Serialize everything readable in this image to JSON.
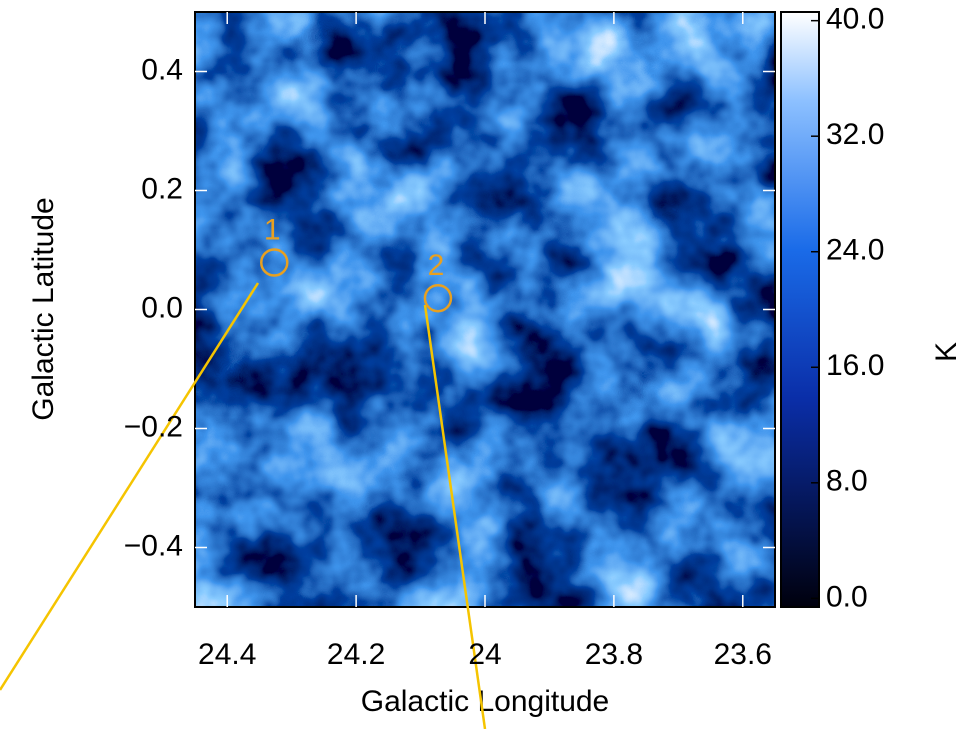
{
  "chart_data": {
    "type": "image",
    "xlabel": "Galactic Longitude",
    "ylabel": "Galactic Latitude",
    "xlim": [
      24.45,
      23.55
    ],
    "ylim": [
      -0.5,
      0.5
    ],
    "xticks": [
      24.4,
      24.2,
      24.0,
      23.8,
      23.6
    ],
    "yticks": [
      {
        "value": -0.4,
        "label": "−0.4"
      },
      {
        "value": -0.2,
        "label": "−0.2"
      },
      {
        "value": 0,
        "label": "0.0"
      },
      0.2,
      0.4
    ],
    "colorbar": {
      "label": "K",
      "lim": [
        -0.6,
        40.6
      ],
      "ticks": [
        {
          "value": 0,
          "label": "0.0"
        },
        {
          "value": 8,
          "label": "8.0"
        },
        {
          "value": 16,
          "label": "16.0"
        },
        {
          "value": 24,
          "label": "24.0"
        },
        {
          "value": 32,
          "label": "32.0"
        },
        {
          "value": 40,
          "label": "40.0"
        }
      ]
    },
    "annotations": [
      {
        "label": "1",
        "x": 24.327,
        "y": 0.079
      },
      {
        "label": "2",
        "x": 24.073,
        "y": 0.019
      }
    ],
    "marker_color": "#e8a020"
  }
}
